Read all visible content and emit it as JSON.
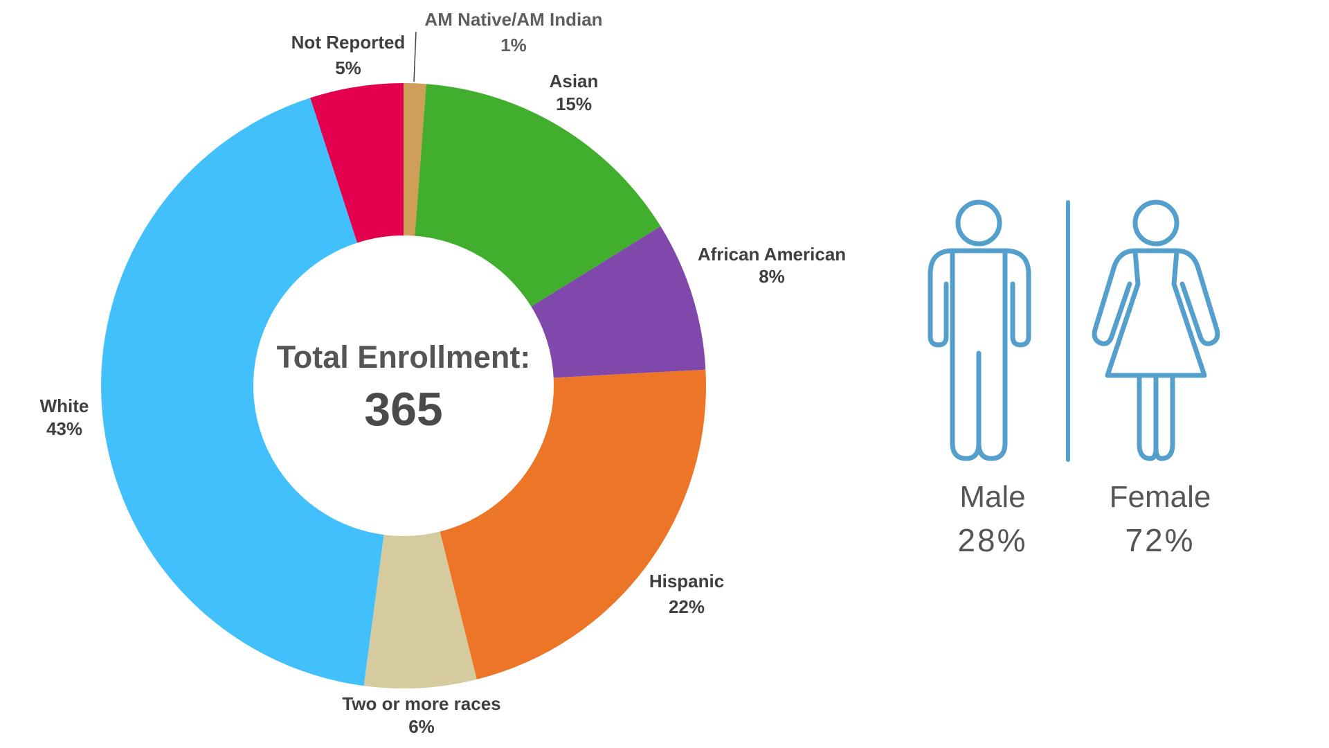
{
  "chart_data": [
    {
      "type": "pie",
      "variant": "donut",
      "center": {
        "title": "Total Enrollment:",
        "value": "365"
      },
      "slices": [
        {
          "name": "AM Native/AM Indian",
          "pct_label": "1%",
          "value": 1.2,
          "color": "#cf9e58"
        },
        {
          "name": "Asian",
          "pct_label": "15%",
          "value": 15,
          "color": "#41ae2e"
        },
        {
          "name": "African American",
          "pct_label": "8%",
          "value": 8,
          "color": "#8048aa"
        },
        {
          "name": "Hispanic",
          "pct_label": "22%",
          "value": 22,
          "color": "#ed7527"
        },
        {
          "name": "Two or more races",
          "pct_label": "6%",
          "value": 6,
          "color": "#d5cb9f"
        },
        {
          "name": "White",
          "pct_label": "43%",
          "value": 43,
          "color": "#42c0fb"
        },
        {
          "name": "Not Reported",
          "pct_label": "5%",
          "value": 5,
          "color": "#e3004e"
        }
      ],
      "start_angle_deg": 0,
      "direction": "clockwise"
    },
    {
      "type": "pictograph",
      "icon_color": "#559fcc",
      "groups": [
        {
          "label": "Male",
          "pct_label": "28%",
          "value": 28,
          "icon": "male-figure-icon"
        },
        {
          "label": "Female",
          "pct_label": "72%",
          "value": 72,
          "icon": "female-figure-icon"
        }
      ]
    }
  ]
}
